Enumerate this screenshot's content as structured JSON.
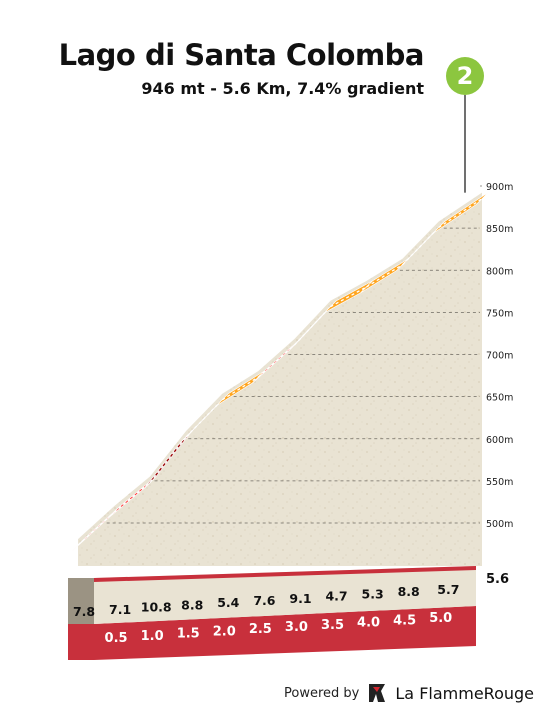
{
  "header": {
    "title": "Lago di Santa Colomba",
    "subtitle": "946 mt - 5.6 Km, 7.4% gradient",
    "badge": "2"
  },
  "footer": {
    "powered_label": "Powered by",
    "brand_name": "La FlammeRouge"
  },
  "colors": {
    "gradient_gt_10": "#990000",
    "gradient_7_to_10": "#ff3333",
    "gradient_4_to_7": "#ffa51f",
    "base_band": "#c8303c",
    "ground": "#e9e3d3"
  },
  "chart_data": {
    "type": "area",
    "title": "Lago di Santa Colomba",
    "subtitle": "946 mt - 5.6 Km, 7.4% gradient",
    "xlabel": "",
    "ylabel": "",
    "x_unit": "km",
    "y_unit": "m",
    "xlim": [
      0,
      5.6
    ],
    "ylim": [
      469,
      935
    ],
    "y_ticks": [
      "500m",
      "550m",
      "600m",
      "650m",
      "700m",
      "750m",
      "800m",
      "850m",
      "900m"
    ],
    "y_tick_values": [
      500,
      550,
      600,
      650,
      700,
      750,
      800,
      850,
      900
    ],
    "x_ticks": [
      "0.5",
      "1.0",
      "1.5",
      "2.0",
      "2.5",
      "3.0",
      "3.5",
      "4.0",
      "4.5",
      "5.0",
      "5.6"
    ],
    "x_tick_values": [
      0.5,
      1.0,
      1.5,
      2.0,
      2.5,
      3.0,
      3.5,
      4.0,
      4.5,
      5.0,
      5.6
    ],
    "grid": true,
    "segments": [
      {
        "from_km": 0.0,
        "to_km": 0.5,
        "gradient": 7.8,
        "label": "7.8"
      },
      {
        "from_km": 0.5,
        "to_km": 1.0,
        "gradient": 7.1,
        "label": "7.1"
      },
      {
        "from_km": 1.0,
        "to_km": 1.5,
        "gradient": 10.8,
        "label": "10.8"
      },
      {
        "from_km": 1.5,
        "to_km": 2.0,
        "gradient": 8.8,
        "label": "8.8"
      },
      {
        "from_km": 2.0,
        "to_km": 2.5,
        "gradient": 5.4,
        "label": "5.4"
      },
      {
        "from_km": 2.5,
        "to_km": 3.0,
        "gradient": 7.6,
        "label": "7.6"
      },
      {
        "from_km": 3.0,
        "to_km": 3.5,
        "gradient": 9.1,
        "label": "9.1"
      },
      {
        "from_km": 3.5,
        "to_km": 4.0,
        "gradient": 4.7,
        "label": "4.7"
      },
      {
        "from_km": 4.0,
        "to_km": 4.5,
        "gradient": 5.3,
        "label": "5.3"
      },
      {
        "from_km": 4.5,
        "to_km": 5.0,
        "gradient": 8.8,
        "label": "8.8"
      },
      {
        "from_km": 5.0,
        "to_km": 5.6,
        "gradient": 5.7,
        "label": "5.7"
      }
    ]
  }
}
